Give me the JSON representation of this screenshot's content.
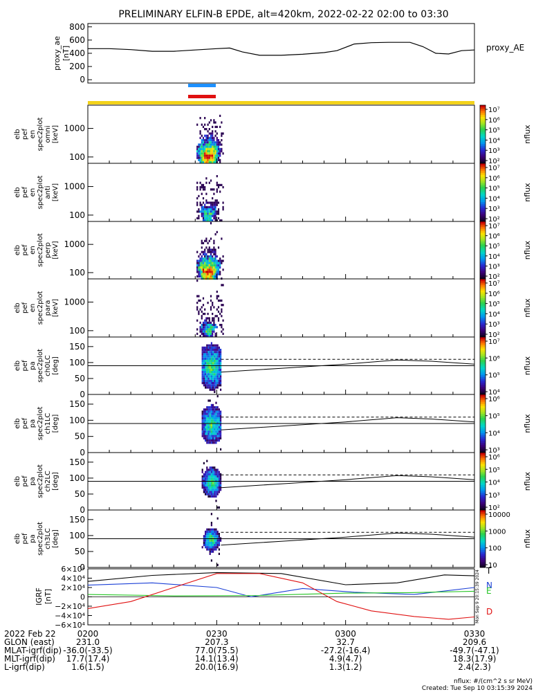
{
  "title": "PRELIMINARY ELFIN-B EPDE, alt=420km, 2022-02-22 02:00 to 03:30",
  "ae_panel": {
    "ylabel": [
      "proxy_ae",
      "[nT]"
    ],
    "legend": "proxy_AE",
    "yticks": [
      "800",
      "600",
      "400",
      "200",
      "0"
    ]
  },
  "spec_panels": [
    {
      "ylabel": [
        "elb",
        "pef",
        "en",
        "spec2plot",
        "omni",
        "[keV]"
      ],
      "yticks": [
        "1000",
        "100"
      ]
    },
    {
      "ylabel": [
        "elb",
        "pef",
        "en",
        "spec2plot",
        "anti",
        "[keV]"
      ],
      "yticks": [
        "1000",
        "100"
      ]
    },
    {
      "ylabel": [
        "elb",
        "pef",
        "en",
        "spec2plot",
        "perp",
        "[keV]"
      ],
      "yticks": [
        "1000",
        "100"
      ]
    },
    {
      "ylabel": [
        "elb",
        "pef",
        "en",
        "spec2plot",
        "para",
        "[keV]"
      ],
      "yticks": [
        "1000",
        "100"
      ]
    }
  ],
  "pa_panels": [
    {
      "ylabel": [
        "elb",
        "pef",
        "pa",
        "spec2plot",
        "ch0LC",
        "[deg]"
      ],
      "yticks": [
        "150",
        "100",
        "50",
        "0"
      ]
    },
    {
      "ylabel": [
        "elb",
        "pef",
        "pa",
        "spec2plot",
        "ch1LC",
        "[deg]"
      ],
      "yticks": [
        "150",
        "100",
        "50",
        "0"
      ]
    },
    {
      "ylabel": [
        "elb",
        "pef",
        "pa",
        "spec2plot",
        "ch2LC",
        "[deg]"
      ],
      "yticks": [
        "150",
        "100",
        "50",
        "0"
      ]
    },
    {
      "ylabel": [
        "elb",
        "pef",
        "pa",
        "spec2plot",
        "ch3LC",
        "[deg]"
      ],
      "yticks": [
        "150",
        "100",
        "50",
        "0"
      ]
    }
  ],
  "colorbars": [
    {
      "label": "nflux",
      "ticks": [
        "10⁷",
        "10⁶",
        "10⁵",
        "10⁴",
        "10³",
        "10²"
      ]
    },
    {
      "label": "nflux",
      "ticks": [
        "10⁷",
        "10⁶",
        "10⁵",
        "10⁴",
        "10³",
        "10²"
      ]
    },
    {
      "label": "nflux",
      "ticks": [
        "10⁷",
        "10⁶",
        "10⁵",
        "10⁴",
        "10³",
        "10²"
      ]
    },
    {
      "label": "nflux",
      "ticks": [
        "10⁷",
        "10⁶",
        "10⁵",
        "10⁴",
        "10³",
        "10²"
      ]
    },
    {
      "label": "nflux",
      "ticks": [
        "10⁷",
        "10⁶",
        "10⁵",
        "10⁴"
      ]
    },
    {
      "label": "nflux",
      "ticks": [
        "10⁶",
        "10⁵",
        "10⁴",
        "10³"
      ]
    },
    {
      "label": "nflux",
      "ticks": [
        "10⁶",
        "10⁵",
        "10⁴",
        "10³",
        "10²"
      ]
    },
    {
      "label": "nflux",
      "ticks": [
        "10000",
        "1000",
        "100",
        "10"
      ]
    }
  ],
  "igrf_panel": {
    "ylabel": [
      "IGRF",
      "[nT]"
    ],
    "yticks": [
      "6×10⁴",
      "4×10⁴",
      "2×10⁴",
      "0",
      "−2×10⁴",
      "−4×10⁴",
      "−6×10⁴"
    ],
    "legend": [
      {
        "name": "T",
        "color": "#000000"
      },
      {
        "name": "N",
        "color": "#1a3fd6"
      },
      {
        "name": "E",
        "color": "#22c422"
      },
      {
        "name": "D",
        "color": "#e01010"
      }
    ],
    "side_note": "Mon Sep 9 20:15:39 2024"
  },
  "colors": {
    "blue_bar": "#1e90ff",
    "red_bar": "#e01010",
    "yellow_bar": "#f2d21b"
  },
  "footer": {
    "rows": [
      {
        "label": "2022 Feb 22",
        "values": [
          "0200",
          "0230",
          "0300",
          "0330"
        ]
      },
      {
        "label": "GLON (east)",
        "values": [
          "231.0",
          "207.3",
          "32.7",
          "209.6"
        ]
      },
      {
        "label": "MLAT-igrf(dip)",
        "values": [
          "-36.0(-33.5)",
          "77.0(75.5)",
          "-27.2(-16.4)",
          "-49.7(-47.1)"
        ]
      },
      {
        "label": "MLT-igrf(dip)",
        "values": [
          "17.7(17.4)",
          "14.1(13.4)",
          "4.9(4.7)",
          "18.3(17.9)"
        ]
      },
      {
        "label": "L-igrf(dip)",
        "values": [
          "1.6(1.5)",
          "20.0(16.9)",
          "1.3(1.2)",
          "2.4(2.3)"
        ]
      }
    ],
    "units_note": "nflux: #/(cm^2 s sr MeV)",
    "created_note": "Created: Tue Sep 10 03:15:39 2024"
  },
  "chart_data": [
    {
      "type": "line",
      "x_unit": "minutes after 02:00 UT",
      "xlim": [
        0,
        90
      ],
      "ylim": [
        -50,
        850
      ],
      "series": [
        {
          "name": "proxy_AE",
          "x": [
            0,
            5,
            10,
            15,
            20,
            25,
            30,
            33,
            36,
            40,
            45,
            50,
            55,
            58,
            62,
            66,
            70,
            75,
            78,
            81,
            84,
            87,
            90
          ],
          "y": [
            470,
            470,
            455,
            430,
            430,
            450,
            470,
            480,
            420,
            370,
            370,
            385,
            410,
            440,
            540,
            560,
            565,
            565,
            500,
            400,
            390,
            440,
            450
          ]
        }
      ]
    },
    {
      "type": "heatmap",
      "name": "energy spectrograms (omni, anti, perp, para)",
      "x_unit": "minutes after 02:00 UT",
      "y_unit": "keV (log)",
      "ylim": [
        60,
        6500
      ],
      "data_time_range": [
        25.3,
        31.5
      ],
      "peak_energy_keV": 100
    },
    {
      "type": "line",
      "name": "loss cone / anti loss cone (ch0LC–ch3LC panels)",
      "x_unit": "minutes after 02:00 UT",
      "y_unit": "deg",
      "ylim": [
        0,
        180
      ],
      "series": [
        {
          "name": "solid",
          "x": [
            31,
            45,
            60,
            72,
            80,
            90
          ],
          "y": [
            70,
            82,
            95,
            108,
            104,
            95
          ]
        },
        {
          "name": "dashed",
          "x": [
            31,
            90
          ],
          "y": [
            110,
            110
          ]
        }
      ]
    },
    {
      "type": "line",
      "name": "IGRF",
      "x_unit": "minutes after 02:00 UT",
      "ylim": [
        -60000,
        60000
      ],
      "series": [
        {
          "name": "T",
          "x": [
            0,
            15,
            30,
            45,
            60,
            72,
            83,
            90
          ],
          "y": [
            33000,
            46000,
            52000,
            50000,
            26000,
            30000,
            47000,
            45000
          ]
        },
        {
          "name": "N",
          "x": [
            0,
            15,
            30,
            38,
            50,
            62,
            76,
            90
          ],
          "y": [
            25000,
            30000,
            20000,
            0,
            18000,
            10000,
            5000,
            20000
          ]
        },
        {
          "name": "E",
          "x": [
            0,
            20,
            40,
            60,
            75,
            90
          ],
          "y": [
            5000,
            2000,
            3000,
            8000,
            9000,
            12000
          ]
        },
        {
          "name": "D",
          "x": [
            0,
            10,
            20,
            30,
            40,
            50,
            58,
            66,
            76,
            84,
            90
          ],
          "y": [
            -25000,
            -10000,
            20000,
            50000,
            50000,
            30000,
            -10000,
            -30000,
            -42000,
            -48000,
            -43000
          ]
        }
      ]
    }
  ]
}
